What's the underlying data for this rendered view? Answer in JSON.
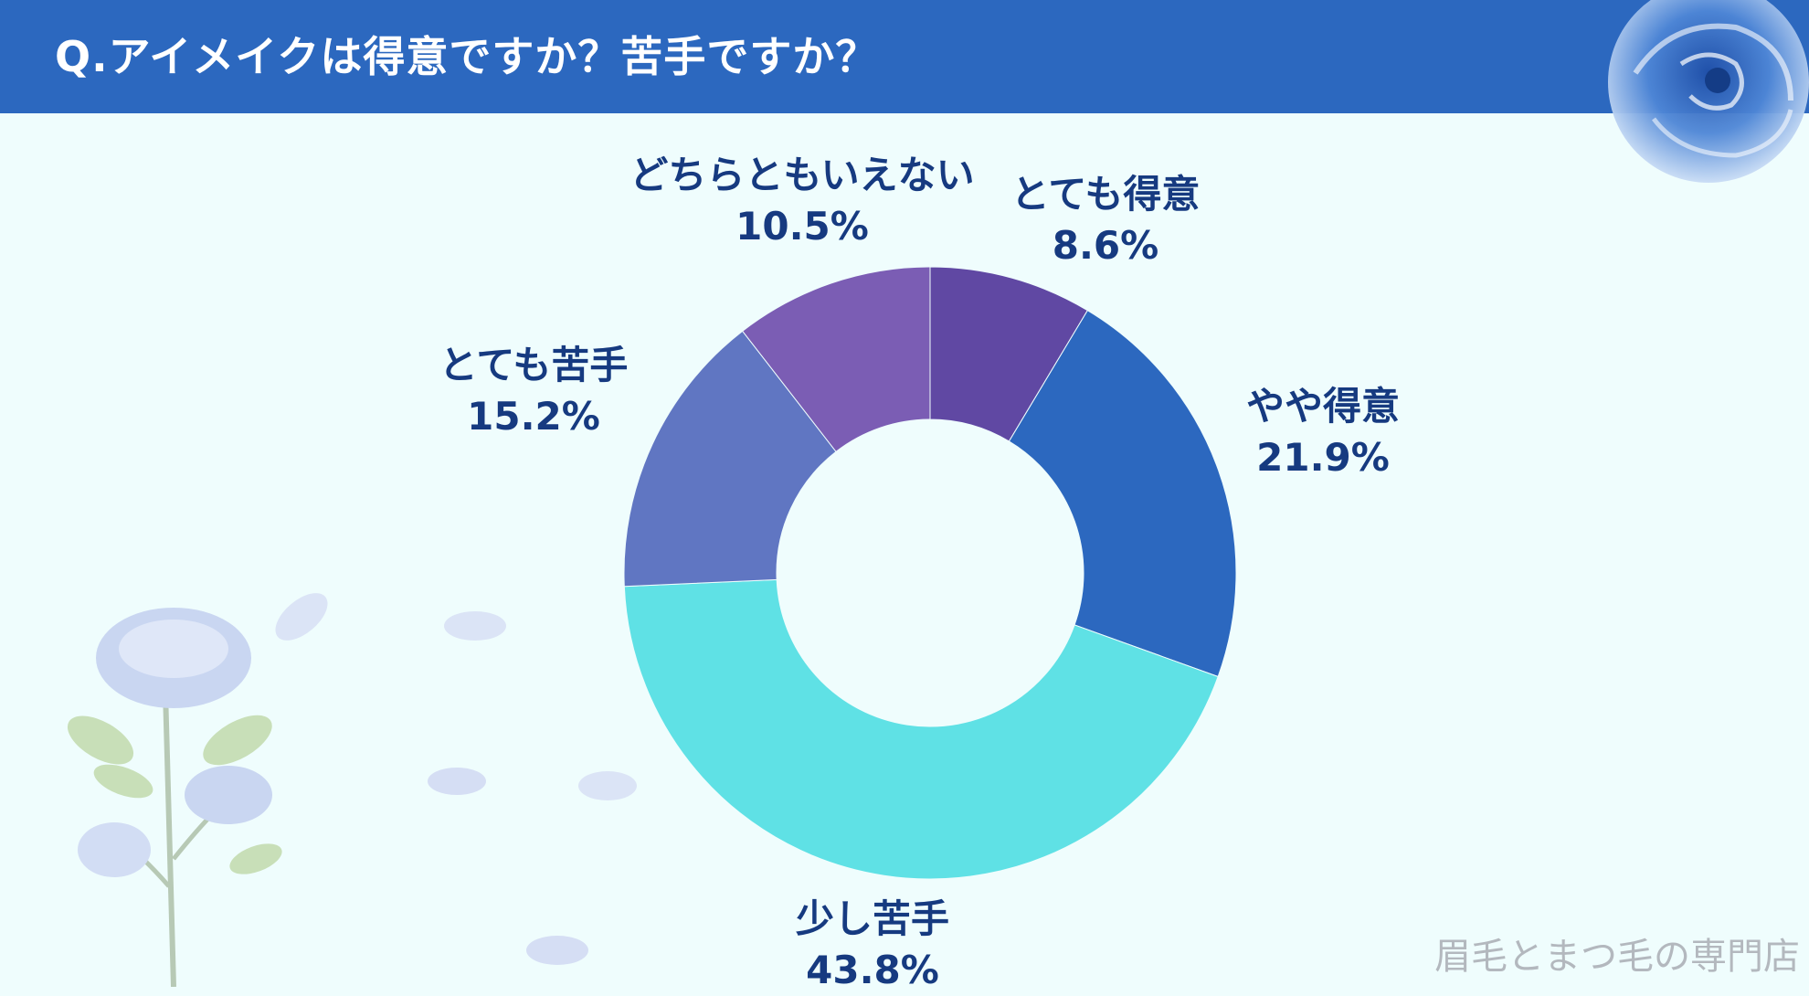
{
  "header": {
    "title": "Q.アイメイクは得意ですか？苦手ですか？"
  },
  "chart_data": {
    "type": "pie",
    "style": "donut",
    "categories": [
      "とても得意",
      "やや得意",
      "少し苦手",
      "とても苦手",
      "どちらともいえない"
    ],
    "values": [
      8.6,
      21.9,
      43.8,
      15.2,
      10.5
    ],
    "value_labels": [
      "8.6%",
      "21.9%",
      "43.8%",
      "15.2%",
      "10.5%"
    ],
    "unit": "%",
    "colors": [
      "#6048a3",
      "#2c68bf",
      "#5fe1e5",
      "#6076c2",
      "#7b5db4"
    ]
  },
  "watermark": "眉毛とまつ毛の専門店",
  "colors": {
    "header": "#2c68bf",
    "background": "#effdfd",
    "label": "#163a80"
  }
}
